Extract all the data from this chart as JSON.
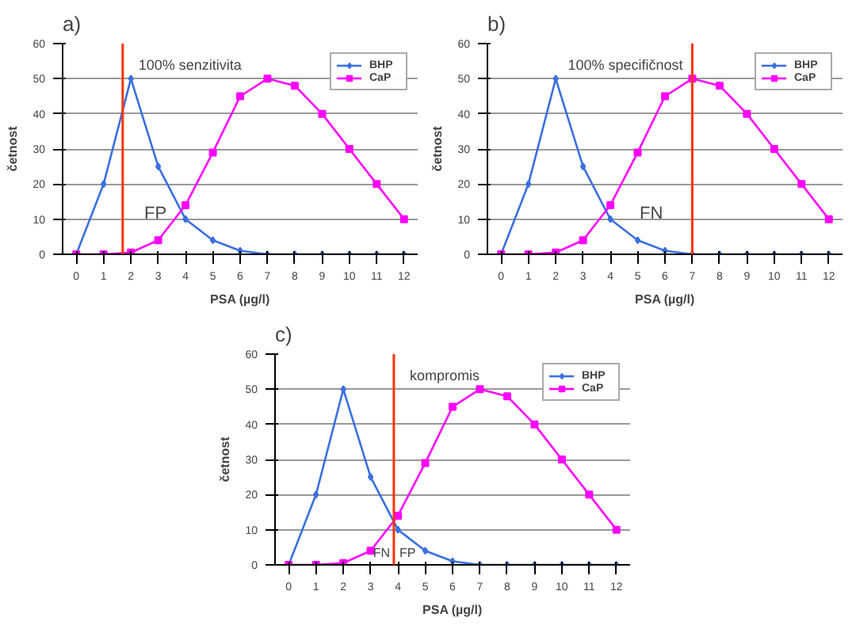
{
  "chart_data": [
    {
      "type": "line",
      "title": "a)",
      "xlabel": "PSA (µg/l)",
      "ylabel": "četnost",
      "x": [
        0,
        1,
        2,
        3,
        4,
        5,
        6,
        7,
        8,
        9,
        10,
        11,
        12
      ],
      "series": [
        {
          "name": "BHP",
          "color": "#3a6fe0",
          "marker": "diamond",
          "values": [
            0,
            20,
            50,
            25,
            10,
            4,
            1,
            0,
            0,
            0,
            0,
            0,
            0
          ]
        },
        {
          "name": "CaP",
          "color": "#ff00ff",
          "marker": "square",
          "values": [
            0,
            0,
            0.5,
            4,
            14,
            29,
            45,
            50,
            48,
            40,
            30,
            20,
            10
          ]
        }
      ],
      "xlim": [
        -0.5,
        12.5
      ],
      "xticks": [
        0,
        1,
        2,
        3,
        4,
        5,
        6,
        7,
        8,
        9,
        10,
        11,
        12
      ],
      "ylim": [
        0,
        60
      ],
      "yticks": [
        0,
        10,
        20,
        30,
        40,
        50,
        60
      ],
      "grid": "y",
      "legend": "top right",
      "ref_lines": [
        {
          "axis": "x",
          "value": 1.7,
          "label": "100% senzitivita",
          "color": "#ff3300"
        }
      ],
      "annotations": [
        "FP"
      ]
    },
    {
      "type": "line",
      "title": "b)",
      "xlabel": "PSA (µg/l)",
      "ylabel": "četnost",
      "x": [
        0,
        1,
        2,
        3,
        4,
        5,
        6,
        7,
        8,
        9,
        10,
        11,
        12
      ],
      "series": [
        {
          "name": "BHP",
          "color": "#3a6fe0",
          "marker": "diamond",
          "values": [
            0,
            20,
            50,
            25,
            10,
            4,
            1,
            0,
            0,
            0,
            0,
            0,
            0
          ]
        },
        {
          "name": "CaP",
          "color": "#ff00ff",
          "marker": "square",
          "values": [
            0,
            0,
            0.5,
            4,
            14,
            29,
            45,
            50,
            48,
            40,
            30,
            20,
            10
          ]
        }
      ],
      "xlim": [
        -0.5,
        12.5
      ],
      "xticks": [
        0,
        1,
        2,
        3,
        4,
        5,
        6,
        7,
        8,
        9,
        10,
        11,
        12
      ],
      "ylim": [
        0,
        60
      ],
      "yticks": [
        0,
        10,
        20,
        30,
        40,
        50,
        60
      ],
      "grid": "y",
      "legend": "top right",
      "ref_lines": [
        {
          "axis": "x",
          "value": 7,
          "label": "100% specifičnost",
          "color": "#ff3300"
        }
      ],
      "annotations": [
        "FN"
      ]
    },
    {
      "type": "line",
      "title": "c)",
      "xlabel": "PSA (µg/l)",
      "ylabel": "četnost",
      "x": [
        0,
        1,
        2,
        3,
        4,
        5,
        6,
        7,
        8,
        9,
        10,
        11,
        12
      ],
      "series": [
        {
          "name": "BHP",
          "color": "#3a6fe0",
          "marker": "diamond",
          "values": [
            0,
            20,
            50,
            25,
            10,
            4,
            1,
            0,
            0,
            0,
            0,
            0,
            0
          ]
        },
        {
          "name": "CaP",
          "color": "#ff00ff",
          "marker": "square",
          "values": [
            0,
            0,
            0.5,
            4,
            14,
            29,
            45,
            50,
            48,
            40,
            30,
            20,
            10
          ]
        }
      ],
      "xlim": [
        -0.5,
        12.5
      ],
      "xticks": [
        0,
        1,
        2,
        3,
        4,
        5,
        6,
        7,
        8,
        9,
        10,
        11,
        12
      ],
      "ylim": [
        0,
        60
      ],
      "yticks": [
        0,
        10,
        20,
        30,
        40,
        50,
        60
      ],
      "grid": "y",
      "legend": "top right",
      "ref_lines": [
        {
          "axis": "x",
          "value": 3.85,
          "label": "kompromis",
          "color": "#ff3300"
        }
      ],
      "annotations": [
        "FN",
        "FP"
      ]
    }
  ]
}
